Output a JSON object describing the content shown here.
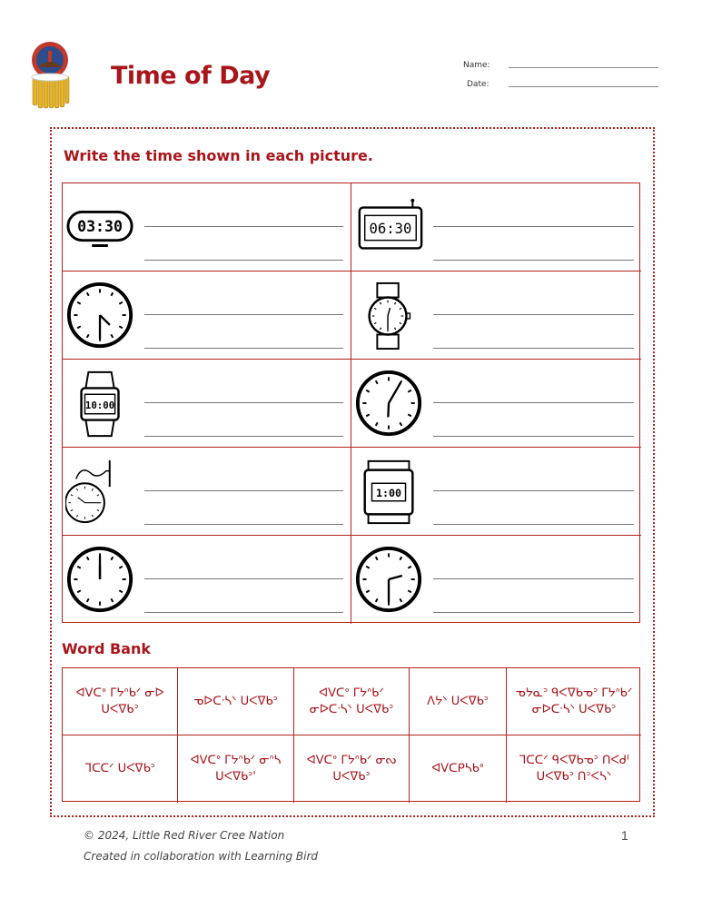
{
  "header": {
    "title": "Time of Day",
    "name_label": "Name:",
    "date_label": "Date:"
  },
  "instruction": "Write the time shown in each picture.",
  "pictures": [
    {
      "type": "alarm-clock",
      "display": "03:30"
    },
    {
      "type": "digital-clock",
      "display": "06:30"
    },
    {
      "type": "analog-clock",
      "time": "4:30"
    },
    {
      "type": "wristwatch",
      "time": "12:30"
    },
    {
      "type": "digital-watch",
      "display": "10:00"
    },
    {
      "type": "analog-clock",
      "time": "6:05"
    },
    {
      "type": "pocket-watch",
      "time": "10:15"
    },
    {
      "type": "digital-watch-square",
      "display": "1:00"
    },
    {
      "type": "analog-clock",
      "time": "12:00"
    },
    {
      "type": "analog-clock",
      "time": "2:30"
    }
  ],
  "word_bank": {
    "label": "Word Bank",
    "items": [
      "ᐊᐯᑕᐤ ᒥᔭᐢᑲᐟ ᓂᐅ ᑌᐸᐁᑲᐣ",
      "ᓀᐅᑕᐧᓴᐠ ᑌᐸᐁᑲᐣ",
      "ᐊᐯᑕᐤ ᒥᔭᐢᑲᐟ ᓂᐅᑕᐧᓴᐠ ᑌᐸᐁᑲᐣ",
      "ᐱᔭᐠ ᑌᐸᐁᑲᐣ",
      "ᓀᔭᓇᐣ ᑫᐸᐁᑲᓀᐣ ᒥᔭᐢᑲᐟ ᓂᐅᑕᐧᓴᐠ ᑌᐸᐁᑲᐣ",
      "ᒣᑕᑕᐟ ᑌᐸᐁᑲᐣ",
      "ᐊᐯᑕᐤ ᒥᔭᐢᑲᐟ ᓂᐢᓴ ᑌᐸᐁᑲᐣ'",
      "ᐊᐯᑕᐤ ᒥᔭᐢᑲᐟ ᓂᔓ ᑌᐸᐁᑲᐣ",
      "ᐊᐯᑕᑭᓴᑲᐤ",
      "ᒣᑕᑕᐟ ᑫᐸᐁᑲᓀᐣ ᑎᐸᑯᑊ ᑌᐸᐁᑲᐣ ᑎᐣᐸᓴᐠ"
    ]
  },
  "footer": {
    "copyright": "© 2024, Little Red River Cree Nation",
    "credit": "Created in collaboration with Learning Bird",
    "page": "1"
  },
  "colors": {
    "accent": "#a8151a"
  }
}
